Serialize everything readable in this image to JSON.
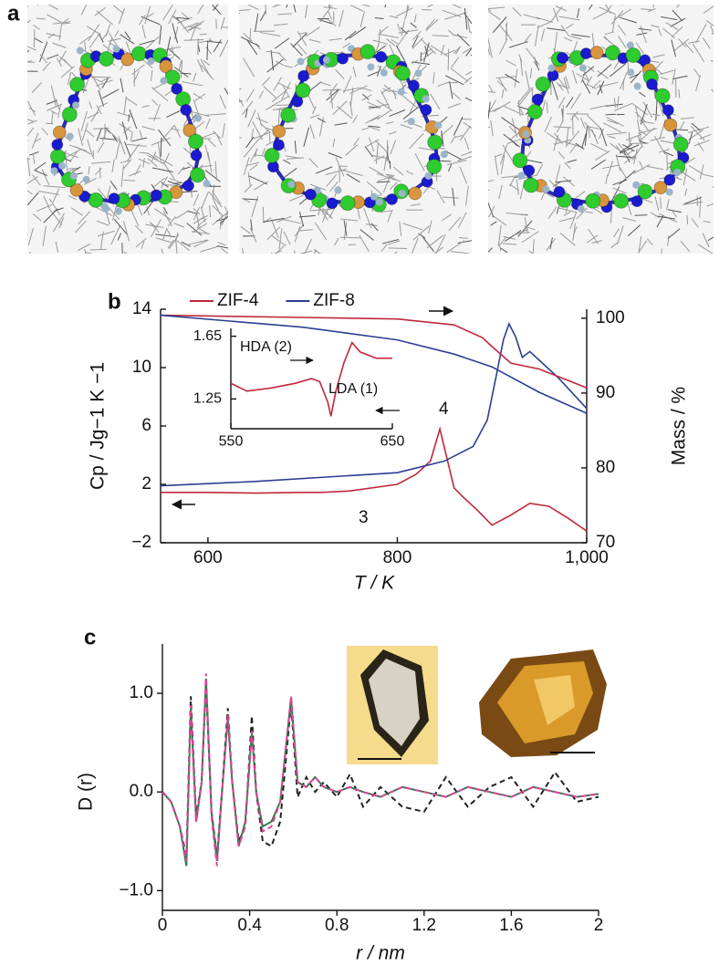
{
  "panel_labels": [
    "a",
    "b",
    "c"
  ],
  "chart_data": [
    {
      "type": "line",
      "x_label": "T / K",
      "y_label": "Cp / Jg−1 K −1",
      "y2_label": "Mass / %",
      "xlim": [
        550,
        1000
      ],
      "xticks": [
        600,
        800,
        {
          "value": 1000,
          "label": "1,000"
        }
      ],
      "ylim": [
        -2,
        14
      ],
      "yticks": [
        {
          "value": -2,
          "label": "−2"
        },
        2,
        6,
        10,
        14
      ],
      "y2lim": [
        70,
        101.2
      ],
      "y2ticks": [
        70,
        80,
        90,
        100
      ],
      "annotations": [
        "4",
        "3"
      ],
      "series": [
        {
          "name": "ZIF-4",
          "color": "#c0283a",
          "x": [
            550,
            600,
            650,
            700,
            720,
            750,
            800,
            820,
            835,
            845,
            852,
            860,
            870,
            885,
            900,
            920,
            940,
            960,
            980,
            1000
          ],
          "values": [
            1.45,
            1.45,
            1.4,
            1.45,
            1.45,
            1.55,
            2.0,
            2.7,
            3.6,
            5.8,
            3.9,
            1.75,
            1.1,
            0.2,
            -0.8,
            -0.1,
            0.7,
            0.5,
            -0.3,
            -1.2
          ]
        },
        {
          "name": "ZIF-8",
          "color": "#2a3f93",
          "x": [
            550,
            650,
            750,
            800,
            850,
            880,
            895,
            905,
            912,
            918,
            925,
            932,
            940,
            950,
            970,
            1000
          ],
          "values": [
            1.9,
            2.2,
            2.6,
            2.8,
            3.6,
            4.6,
            6.4,
            9.6,
            11.9,
            13.0,
            12.1,
            10.7,
            11.1,
            10.5,
            9.3,
            7.2
          ]
        },
        {
          "axis": "y2",
          "color": "#c0283a",
          "x": [
            550,
            700,
            800,
            860,
            890,
            900,
            920,
            950,
            1000
          ],
          "values": [
            100.4,
            100.1,
            99.9,
            99.1,
            97.4,
            96.2,
            94.0,
            93.2,
            90.7
          ]
        },
        {
          "axis": "y2",
          "color": "#2a3f93",
          "x": [
            550,
            700,
            800,
            860,
            900,
            950,
            1000
          ],
          "values": [
            100.4,
            98.8,
            97.1,
            95.2,
            93.5,
            90.1,
            87.3
          ]
        }
      ]
    },
    {
      "type": "line",
      "xlim": [
        550,
        650
      ],
      "xticks": [
        550,
        650
      ],
      "ylim": [
        1.06,
        1.7
      ],
      "yticks": [
        1.25,
        1.65
      ],
      "annotations": [
        "HDA (2)",
        "LDA (1)"
      ],
      "series": [
        {
          "color": "#c0283a",
          "x": [
            550,
            560,
            575,
            590,
            600,
            605,
            610,
            612,
            615,
            620,
            625,
            630,
            640,
            650
          ],
          "values": [
            1.35,
            1.3,
            1.32,
            1.35,
            1.38,
            1.36,
            1.23,
            1.14,
            1.3,
            1.48,
            1.61,
            1.55,
            1.51,
            1.51
          ]
        }
      ]
    },
    {
      "type": "line",
      "x_label": "r / nm",
      "y_label": "D (r)",
      "xlim": [
        0,
        2
      ],
      "xticks": [
        0,
        0.4,
        0.8,
        1.2,
        1.6,
        2
      ],
      "ylim": [
        -1.2,
        1.5
      ],
      "yticks": [
        {
          "value": -1,
          "label": "−1.0"
        },
        {
          "value": 0,
          "label": "0.0"
        },
        {
          "value": 1,
          "label": "1.0"
        }
      ],
      "x": [
        0,
        0.04,
        0.08,
        0.11,
        0.13,
        0.155,
        0.18,
        0.2,
        0.225,
        0.25,
        0.27,
        0.3,
        0.32,
        0.35,
        0.38,
        0.41,
        0.43,
        0.46,
        0.5,
        0.54,
        0.59,
        0.62,
        0.66,
        0.7,
        0.74,
        0.8,
        0.86,
        0.92,
        1.0,
        1.1,
        1.2,
        1.3,
        1.4,
        1.5,
        1.6,
        1.7,
        1.8,
        1.9,
        2.0
      ],
      "series": [
        {
          "color": "#222222",
          "dash": true,
          "values": [
            0,
            -0.1,
            -0.35,
            -0.65,
            0.97,
            -0.25,
            0.1,
            1.1,
            -0.2,
            -0.65,
            -0.1,
            0.85,
            0.1,
            -0.5,
            -0.35,
            0.77,
            0.0,
            -0.5,
            -0.55,
            -0.3,
            0.9,
            -0.05,
            0.15,
            0.0,
            0.1,
            -0.05,
            0.18,
            -0.15,
            0.05,
            -0.15,
            -0.2,
            0.15,
            -0.15,
            0.05,
            0.15,
            -0.15,
            0.2,
            -0.1,
            -0.05
          ]
        },
        {
          "color": "#2e7d4a",
          "dash": false,
          "values": [
            0,
            -0.1,
            -0.35,
            -0.75,
            0.85,
            -0.3,
            0.1,
            1.15,
            -0.2,
            -0.7,
            -0.1,
            0.75,
            0.1,
            -0.55,
            -0.3,
            0.6,
            0.0,
            -0.35,
            -0.3,
            -0.1,
            0.95,
            0.1,
            0.05,
            0.15,
            0.05,
            0.0,
            0.05,
            0.0,
            -0.05,
            0.05,
            0.0,
            -0.05,
            0.05,
            0.0,
            -0.05,
            0.05,
            0.0,
            -0.05,
            -0.02
          ]
        },
        {
          "color": "#e0409a",
          "dash": true,
          "values": [
            0,
            -0.1,
            -0.35,
            -0.7,
            0.88,
            -0.3,
            0.1,
            1.2,
            -0.25,
            -0.75,
            -0.1,
            0.78,
            0.1,
            -0.55,
            -0.35,
            0.62,
            0.0,
            -0.4,
            -0.35,
            -0.1,
            0.97,
            0.1,
            0.05,
            0.15,
            0.05,
            0.0,
            0.05,
            0.0,
            -0.05,
            0.05,
            0.0,
            -0.05,
            0.05,
            0.0,
            -0.05,
            0.05,
            0.0,
            -0.05,
            -0.02
          ]
        }
      ]
    }
  ]
}
